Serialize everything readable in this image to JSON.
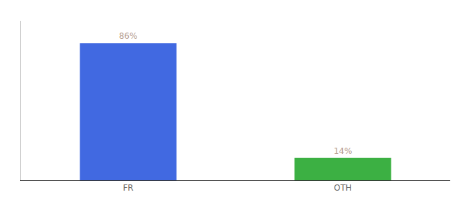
{
  "chart_data": {
    "type": "bar",
    "categories": [
      "FR",
      "OTH"
    ],
    "values": [
      86,
      14
    ],
    "colors": [
      "#4169e1",
      "#3cb043"
    ],
    "ylim": [
      0,
      100
    ],
    "data_labels": true,
    "value_labels": [
      "86%",
      "14%"
    ],
    "tick_labels": "x",
    "grid": false
  }
}
